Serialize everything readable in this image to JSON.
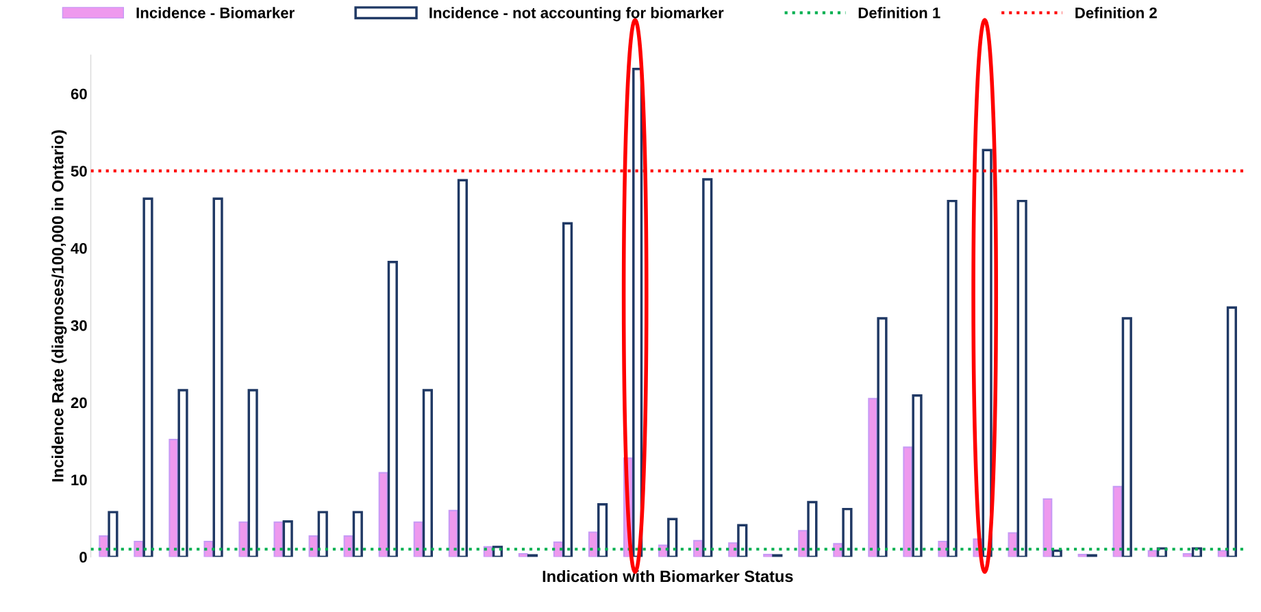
{
  "chart_data": {
    "type": "bar",
    "xlabel": "Indication with Biomarker Status",
    "ylabel": "Incidence Rate (diagnoses/100,000 in Ontario)",
    "categories": [
      null,
      null,
      null,
      null,
      null,
      null,
      null,
      null,
      null,
      null,
      null,
      null,
      null,
      null,
      null,
      null,
      null,
      null,
      null,
      null,
      null,
      null,
      null,
      null,
      null,
      null,
      null,
      null,
      null,
      null,
      null,
      null,
      null
    ],
    "series": [
      {
        "name": "Incidence - Biomarker",
        "color": "#ee99ee",
        "values": [
          2.7,
          2.0,
          15.2,
          2.0,
          4.5,
          4.5,
          2.7,
          2.7,
          10.9,
          4.5,
          6.0,
          1.3,
          0.4,
          1.9,
          3.2,
          12.8,
          1.5,
          2.1,
          1.8,
          0.3,
          3.4,
          1.7,
          20.5,
          14.2,
          2.0,
          2.3,
          3.1,
          7.5,
          0.3,
          9.1,
          0.8,
          0.4,
          0.8
        ]
      },
      {
        "name": "Incidence - not accounting for biomarker",
        "color": "#1f3864",
        "values": [
          5.8,
          46.4,
          21.6,
          46.4,
          21.6,
          4.6,
          5.8,
          5.8,
          38.2,
          21.6,
          48.8,
          1.3,
          0.2,
          43.2,
          6.8,
          63.2,
          4.9,
          48.9,
          4.1,
          0.2,
          7.1,
          6.2,
          30.9,
          20.9,
          46.1,
          52.7,
          46.1,
          0.8,
          0.2,
          30.9,
          1.1,
          1.1,
          32.3
        ]
      }
    ],
    "ref_lines": [
      {
        "axis": "y",
        "value": 1,
        "label": "Definition 1",
        "color": "#00b050",
        "line_style": "dotted"
      },
      {
        "axis": "y",
        "value": 50,
        "label": "Definition 2",
        "color": "#ff0000",
        "line_style": "dotted"
      }
    ],
    "ylim": [
      0,
      65
    ],
    "yticks": [
      0,
      10,
      20,
      30,
      40,
      50,
      60
    ],
    "tick_labels": "y",
    "grid": false,
    "legend": "top"
  }
}
